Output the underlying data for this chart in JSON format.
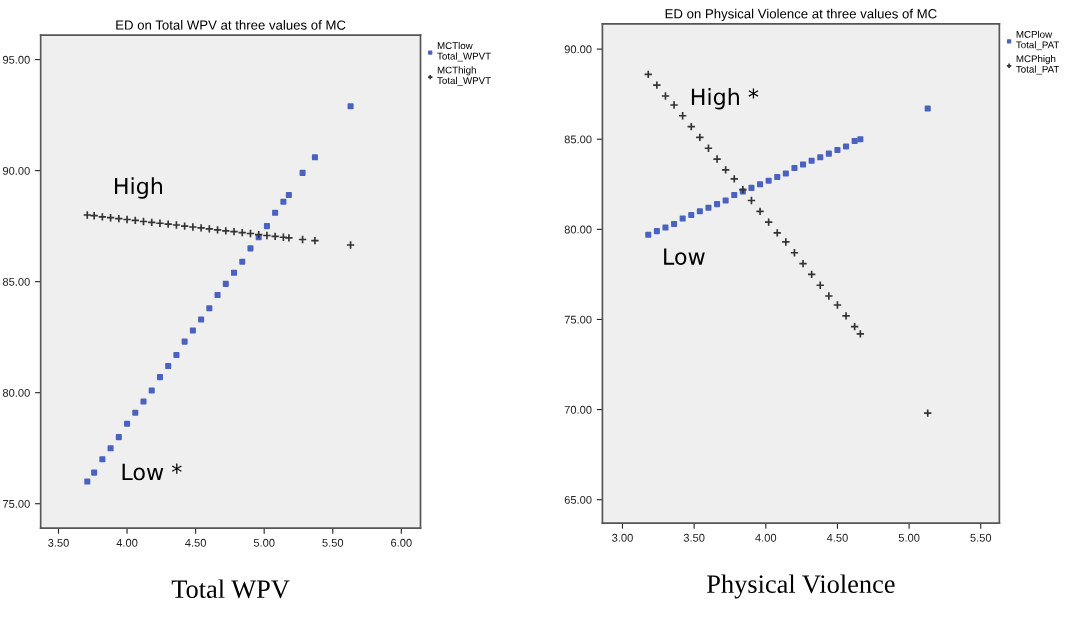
{
  "chart_data": [
    {
      "type": "scatter",
      "title": "ED on Total WPV at three values of MC",
      "xlabel": "Total WPV",
      "xlim": [
        3.37,
        6.14
      ],
      "ylim": [
        73.9,
        96.1
      ],
      "xticks": [
        {
          "value": 3.5,
          "label": "3.50"
        },
        {
          "value": 4.0,
          "label": "4.00"
        },
        {
          "value": 4.5,
          "label": "4.50"
        },
        {
          "value": 5.0,
          "label": "5.00"
        },
        {
          "value": 5.5,
          "label": "5.50"
        },
        {
          "value": 6.0,
          "label": "6.00"
        }
      ],
      "yticks": [
        {
          "value": 75,
          "label": "75.00"
        },
        {
          "value": 80,
          "label": "80.00"
        },
        {
          "value": 85,
          "label": "85.00"
        },
        {
          "value": 90,
          "label": "90.00"
        },
        {
          "value": 95,
          "label": "95.00"
        }
      ],
      "grid": false,
      "legend": "top right",
      "annotations": [
        "High",
        "Low *"
      ],
      "series": [
        {
          "name": "MCTlow\nTotal_WPVT",
          "color": "#4a62c0",
          "marker": "square",
          "x": [
            3.71,
            3.76,
            3.82,
            3.88,
            3.94,
            4.0,
            4.06,
            4.12,
            4.18,
            4.24,
            4.3,
            4.36,
            4.42,
            4.48,
            4.54,
            4.6,
            4.66,
            4.72,
            4.78,
            4.84,
            4.9,
            4.96,
            5.02,
            5.08,
            5.14,
            5.18,
            5.28,
            5.37,
            5.63
          ],
          "values": [
            76.0,
            76.4,
            77.0,
            77.5,
            78.0,
            78.6,
            79.1,
            79.6,
            80.1,
            80.7,
            81.2,
            81.7,
            82.3,
            82.8,
            83.3,
            83.8,
            84.4,
            84.9,
            85.4,
            85.9,
            86.5,
            87.0,
            87.5,
            88.1,
            88.6,
            88.9,
            89.9,
            90.6,
            92.9
          ]
        },
        {
          "name": "MCThigh\nTotal_WPVT",
          "color": "#333333",
          "marker": "cross",
          "x": [
            3.71,
            3.76,
            3.82,
            3.88,
            3.94,
            4.0,
            4.06,
            4.12,
            4.18,
            4.24,
            4.3,
            4.36,
            4.42,
            4.48,
            4.54,
            4.6,
            4.66,
            4.72,
            4.78,
            4.84,
            4.9,
            4.96,
            5.02,
            5.08,
            5.14,
            5.18,
            5.28,
            5.37,
            5.63
          ],
          "values": [
            88.0,
            87.97,
            87.92,
            87.88,
            87.84,
            87.8,
            87.76,
            87.71,
            87.67,
            87.63,
            87.59,
            87.55,
            87.5,
            87.46,
            87.42,
            87.38,
            87.33,
            87.29,
            87.25,
            87.21,
            87.17,
            87.12,
            87.08,
            87.04,
            87.0,
            86.97,
            86.9,
            86.85,
            86.65
          ]
        }
      ]
    },
    {
      "type": "scatter",
      "title": "ED on Physical Violence at three values of MC",
      "xlabel": "Physical Violence",
      "xlim": [
        2.86,
        5.63
      ],
      "ylim": [
        63.7,
        91.4
      ],
      "xticks": [
        {
          "value": 3.0,
          "label": "3.00"
        },
        {
          "value": 3.5,
          "label": "3.50"
        },
        {
          "value": 4.0,
          "label": "4.00"
        },
        {
          "value": 4.5,
          "label": "4.50"
        },
        {
          "value": 5.0,
          "label": "5.00"
        },
        {
          "value": 5.5,
          "label": "5.50"
        }
      ],
      "yticks": [
        {
          "value": 65,
          "label": "65.00"
        },
        {
          "value": 70,
          "label": "70.00"
        },
        {
          "value": 75,
          "label": "75.00"
        },
        {
          "value": 80,
          "label": "80.00"
        },
        {
          "value": 85,
          "label": "85.00"
        },
        {
          "value": 90,
          "label": "90.00"
        }
      ],
      "grid": false,
      "legend": "top right",
      "annotations": [
        "High *",
        "Low"
      ],
      "series": [
        {
          "name": "MCPlow\nTotal_PAT",
          "color": "#4a62c0",
          "marker": "square",
          "x": [
            3.18,
            3.24,
            3.3,
            3.36,
            3.42,
            3.48,
            3.54,
            3.6,
            3.66,
            3.72,
            3.78,
            3.84,
            3.9,
            3.96,
            4.02,
            4.08,
            4.14,
            4.2,
            4.26,
            4.32,
            4.38,
            4.44,
            4.5,
            4.56,
            4.62,
            4.66,
            5.13
          ],
          "values": [
            79.7,
            79.9,
            80.1,
            80.3,
            80.6,
            80.8,
            81.0,
            81.2,
            81.4,
            81.6,
            81.9,
            82.1,
            82.3,
            82.5,
            82.7,
            82.9,
            83.1,
            83.4,
            83.6,
            83.8,
            84.0,
            84.2,
            84.4,
            84.6,
            84.9,
            85.0,
            86.7
          ]
        },
        {
          "name": "MCPhigh\nTotal_PAT",
          "color": "#333333",
          "marker": "cross",
          "x": [
            3.18,
            3.24,
            3.3,
            3.36,
            3.42,
            3.48,
            3.54,
            3.6,
            3.66,
            3.72,
            3.78,
            3.84,
            3.9,
            3.96,
            4.02,
            4.08,
            4.14,
            4.2,
            4.26,
            4.32,
            4.38,
            4.44,
            4.5,
            4.56,
            4.62,
            4.66,
            5.13
          ],
          "values": [
            88.6,
            88.0,
            87.4,
            86.9,
            86.3,
            85.7,
            85.1,
            84.5,
            83.9,
            83.3,
            82.8,
            82.2,
            81.6,
            81.0,
            80.4,
            79.8,
            79.3,
            78.7,
            78.1,
            77.5,
            76.9,
            76.3,
            75.8,
            75.2,
            74.6,
            74.2,
            69.8
          ]
        }
      ]
    }
  ]
}
